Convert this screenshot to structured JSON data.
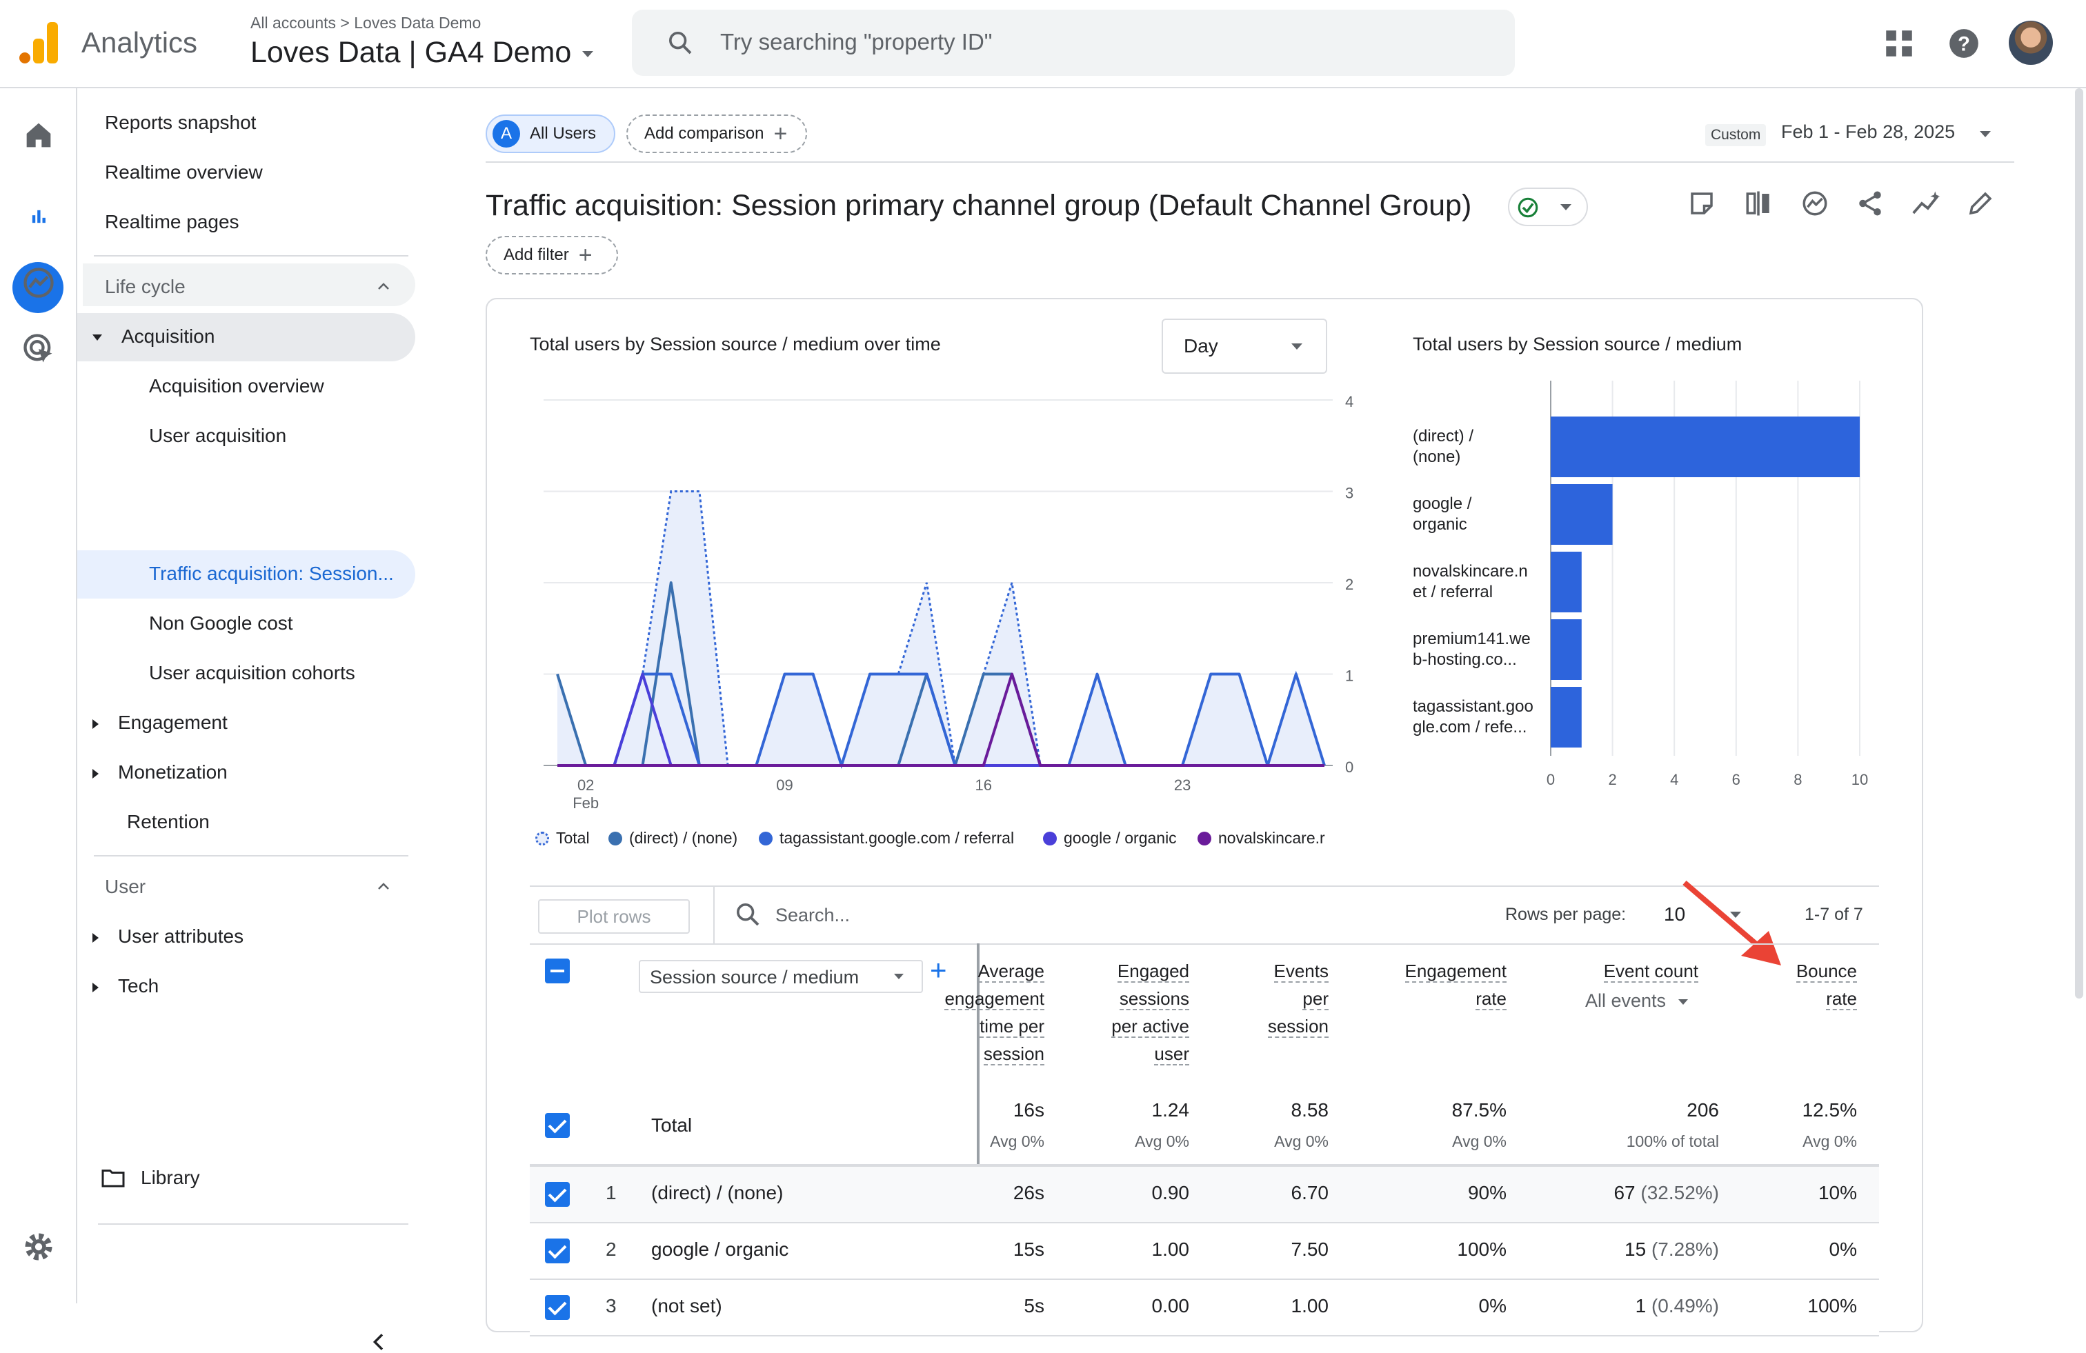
{
  "header": {
    "app_name": "Analytics",
    "breadcrumb_all": "All accounts",
    "breadcrumb_sep": ">",
    "breadcrumb_account": "Loves Data Demo",
    "property_name": "Loves Data | GA4 Demo",
    "search_placeholder": "Try searching \"property ID\""
  },
  "nav": {
    "items": [
      "Reports snapshot",
      "Realtime overview",
      "Realtime pages"
    ],
    "lifecycle_header": "Life cycle",
    "acquisition": "Acquisition",
    "acquisition_children": [
      "Acquisition overview",
      "User acquisition",
      "Traffic acquisition: Session...",
      "Non Google cost",
      "User acquisition cohorts"
    ],
    "engagement": "Engagement",
    "monetization": "Monetization",
    "retention": "Retention",
    "user_header": "User",
    "user_attributes": "User attributes",
    "tech": "Tech",
    "library": "Library"
  },
  "toolbar": {
    "segment_letter": "A",
    "segment_label": "All Users",
    "add_comparison": "Add comparison",
    "date_custom": "Custom",
    "date_range": "Feb 1 - Feb 28, 2025",
    "page_title": "Traffic acquisition: Session primary channel group (Default Channel Group)",
    "add_filter": "Add filter"
  },
  "line_chart": {
    "title": "Total users by Session source / medium over time",
    "granularity": "Day",
    "legend": [
      "Total",
      "(direct) / (none)",
      "tagassistant.google.com / referral",
      "google / organic",
      "novalskincare.r"
    ],
    "x_tick_labels": [
      "02",
      "09",
      "16",
      "23"
    ],
    "x_tick_sub": "Feb",
    "y_tick_labels": [
      "4",
      "3",
      "2",
      "1",
      "0"
    ]
  },
  "chart_data": [
    {
      "type": "line",
      "title": "Total users by Session source / medium over time",
      "x": [
        1,
        2,
        3,
        4,
        5,
        6,
        7,
        8,
        9,
        10,
        11,
        12,
        13,
        14,
        15,
        16,
        17,
        18,
        19,
        20,
        21,
        22,
        23,
        24,
        25,
        26,
        27,
        28
      ],
      "x_ticks": [
        "02 Feb",
        "09",
        "16",
        "23"
      ],
      "ylim": [
        0,
        4
      ],
      "series": [
        {
          "name": "Total",
          "values": [
            1,
            0,
            0,
            1,
            3,
            3,
            0,
            0,
            1,
            1,
            0,
            1,
            1,
            2,
            0,
            1,
            2,
            0,
            0,
            1,
            0,
            0,
            0,
            1,
            1,
            0,
            1,
            0
          ]
        },
        {
          "name": "(direct) / (none)",
          "values": [
            1,
            0,
            0,
            0,
            2,
            0,
            0,
            0,
            0,
            0,
            0,
            0,
            0,
            1,
            0,
            1,
            1,
            0,
            0,
            0,
            0,
            0,
            0,
            0,
            0,
            0,
            0,
            0
          ]
        },
        {
          "name": "tagassistant.google.com / referral",
          "values": [
            0,
            0,
            0,
            1,
            1,
            0,
            0,
            0,
            1,
            1,
            0,
            1,
            1,
            1,
            0,
            0,
            0,
            0,
            0,
            1,
            0,
            0,
            0,
            1,
            1,
            0,
            1,
            0
          ]
        },
        {
          "name": "google / organic",
          "values": [
            0,
            0,
            0,
            1,
            0,
            0,
            0,
            0,
            0,
            0,
            0,
            0,
            0,
            0,
            0,
            0,
            0,
            0,
            0,
            0,
            0,
            0,
            0,
            0,
            0,
            0,
            0,
            0
          ]
        },
        {
          "name": "novalskincare.r",
          "values": [
            0,
            0,
            0,
            0,
            0,
            0,
            0,
            0,
            0,
            0,
            0,
            0,
            0,
            0,
            0,
            0,
            1,
            0,
            0,
            0,
            0,
            0,
            0,
            0,
            0,
            0,
            0,
            0
          ]
        }
      ]
    },
    {
      "type": "bar",
      "title": "Total users by Session source / medium",
      "categories": [
        "(direct) / (none)",
        "google / organic",
        "novalskincare.net / referral",
        "premium141.web-hosting.co...",
        "tagassistant.google.com / refe..."
      ],
      "category_labels": [
        [
          "(direct) /",
          "(none)"
        ],
        [
          "google /",
          "organic"
        ],
        [
          "novalskincare.n",
          "et / referral"
        ],
        [
          "premium141.we",
          "b-hosting.co..."
        ],
        [
          "tagassistant.goo",
          "gle.com / refe..."
        ]
      ],
      "values": [
        10,
        2,
        1,
        1,
        1
      ],
      "x_ticks": [
        "0",
        "2",
        "4",
        "6",
        "8",
        "10"
      ],
      "xlim": [
        0,
        10
      ]
    }
  ],
  "table": {
    "plot_rows": "Plot rows",
    "search_placeholder": "Search...",
    "rows_per_page_label": "Rows per page:",
    "rows_per_page": "10",
    "pagination": "1-7 of 7",
    "dimension": "Session source / medium",
    "col_avg_time": [
      "Average",
      "engagement",
      "time per",
      "session"
    ],
    "col_engaged_sessions": [
      "Engaged",
      "sessions",
      "per active",
      "user"
    ],
    "col_events_per_session": [
      "Events",
      "per",
      "session"
    ],
    "col_engagement_rate": [
      "Engagement",
      "rate"
    ],
    "col_event_count": "Event count",
    "col_event_filter": "All events",
    "col_bounce_rate": [
      "Bounce",
      "rate"
    ],
    "total_label": "Total",
    "totals": {
      "avg_time": "16s",
      "engaged": "1.24",
      "events_per": "8.58",
      "eng_rate": "87.5%",
      "event_count": "206",
      "bounce": "12.5%"
    },
    "totals_sub": {
      "avg_time": "Avg 0%",
      "engaged": "Avg 0%",
      "events_per": "Avg 0%",
      "eng_rate": "Avg 0%",
      "event_count": "100% of total",
      "bounce": "Avg 0%"
    },
    "rows": [
      {
        "num": "1",
        "name": "(direct) / (none)",
        "avg_time": "26s",
        "engaged": "0.90",
        "events_per": "6.70",
        "eng_rate": "90%",
        "event_count": "67",
        "event_pct": "(32.52%)",
        "bounce": "10%"
      },
      {
        "num": "2",
        "name": "google / organic",
        "avg_time": "15s",
        "engaged": "1.00",
        "events_per": "7.50",
        "eng_rate": "100%",
        "event_count": "15",
        "event_pct": "(7.28%)",
        "bounce": "0%"
      },
      {
        "num": "3",
        "name": "(not set)",
        "avg_time": "5s",
        "engaged": "0.00",
        "events_per": "1.00",
        "eng_rate": "0%",
        "event_count": "1",
        "event_pct": "(0.49%)",
        "bounce": "100%"
      }
    ]
  },
  "colors": {
    "accent": "#1a73e8",
    "bar": "#2d64dc",
    "arrow": "#ea4335",
    "total_fill": "#e8eefb",
    "direct": "#3a70b0",
    "tag": "#3366d6",
    "organic": "#4a3fd9",
    "noval": "#6a1b9a"
  }
}
